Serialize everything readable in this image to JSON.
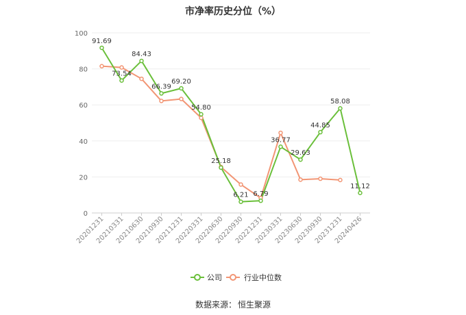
{
  "title": "市净率历史分位（%）",
  "source": {
    "label": "数据来源：",
    "name": "恒生聚源"
  },
  "chart_data": {
    "type": "line",
    "title": "市净率历史分位（%）",
    "categories": [
      "20201231",
      "20210331",
      "20210630",
      "20210930",
      "20211231",
      "20220331",
      "20220630",
      "20220930",
      "20221231",
      "20230331",
      "20230630",
      "20230930",
      "20231231",
      "20240426"
    ],
    "ylim": [
      0,
      100
    ],
    "yticks": [
      0,
      20,
      40,
      60,
      80,
      100
    ],
    "grid": true,
    "legend_position": "bottom",
    "series": [
      {
        "name": "公司",
        "color": "#6abf3a",
        "values": [
          91.69,
          73.54,
          84.43,
          66.39,
          69.2,
          54.8,
          25.18,
          6.21,
          6.79,
          36.77,
          29.63,
          44.85,
          58.08,
          11.12
        ],
        "labels": [
          "91.69",
          "73.54",
          "84.43",
          "66.39",
          "69.20",
          "54.80",
          "25.18",
          "6.21",
          "6.79",
          "36.77",
          "29.63",
          "44.85",
          "58.08",
          "11.12"
        ]
      },
      {
        "name": "行业中位数",
        "color": "#f29574",
        "values": [
          81.5,
          80.8,
          74.5,
          62.2,
          63.3,
          52.8,
          25.5,
          15.8,
          8.3,
          44.5,
          18.5,
          19.0,
          18.3,
          null
        ]
      }
    ]
  }
}
